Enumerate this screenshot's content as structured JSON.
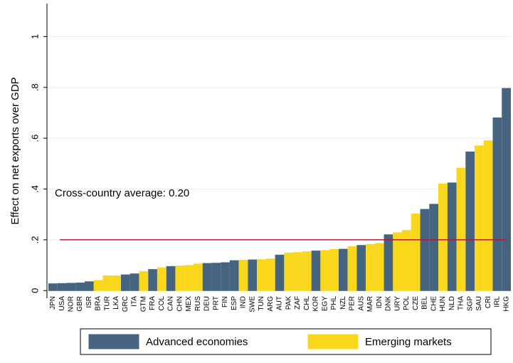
{
  "chart_data": {
    "type": "bar",
    "y_label": "Effect on net exports over GDP",
    "annotation": "Cross-country average: 0.20",
    "reference_line": {
      "value": 0.2,
      "color": "#c0143c"
    },
    "categories": [
      "JPN",
      "USA",
      "NOR",
      "GBR",
      "ISR",
      "BRA",
      "TUR",
      "LKA",
      "GRC",
      "ITA",
      "GTM",
      "FRA",
      "COL",
      "CAN",
      "CHN",
      "MEX",
      "RUS",
      "DEU",
      "PRT",
      "FIN",
      "ESP",
      "IND",
      "SWE",
      "TUN",
      "ARG",
      "AUT",
      "PAK",
      "ZAF",
      "CHL",
      "KOR",
      "EGY",
      "PHL",
      "NZL",
      "PER",
      "AUS",
      "MAR",
      "IDN",
      "DNK",
      "URY",
      "POL",
      "CZE",
      "BEL",
      "CHE",
      "HUN",
      "NLD",
      "THA",
      "SGP",
      "SAU",
      "CRI",
      "IRL",
      "HKG"
    ],
    "series": [
      {
        "name": "Advanced economies",
        "color": "#46647f",
        "values": [
          0.027,
          0.028,
          0.029,
          0.03,
          0.035,
          null,
          null,
          null,
          0.062,
          0.066,
          null,
          0.083,
          null,
          0.095,
          null,
          null,
          null,
          0.107,
          0.108,
          0.11,
          0.118,
          null,
          0.121,
          null,
          null,
          0.14,
          null,
          null,
          null,
          0.156,
          null,
          null,
          0.163,
          null,
          0.178,
          null,
          null,
          0.22,
          null,
          null,
          null,
          0.32,
          0.34,
          null,
          0.424,
          null,
          0.546,
          null,
          null,
          0.68,
          0.796
        ]
      },
      {
        "name": "Emerging markets",
        "color": "#f8d71c",
        "values": [
          null,
          null,
          null,
          null,
          null,
          0.04,
          0.058,
          0.058,
          null,
          null,
          0.075,
          null,
          0.09,
          null,
          0.097,
          0.099,
          0.105,
          null,
          null,
          null,
          null,
          0.12,
          null,
          0.122,
          0.125,
          null,
          0.148,
          0.15,
          0.153,
          null,
          0.158,
          0.162,
          null,
          0.173,
          null,
          0.182,
          0.185,
          null,
          0.228,
          0.237,
          0.302,
          null,
          null,
          0.42,
          null,
          0.482,
          null,
          0.57,
          0.59,
          null,
          null
        ]
      }
    ],
    "ylim": [
      -0.03,
      1.13
    ],
    "yticks": [
      0,
      {
        "value": 0.2,
        "label": ".2"
      },
      {
        "value": 0.4,
        "label": ".4"
      },
      {
        "value": 0.6,
        "label": ".6"
      },
      {
        "value": 0.8,
        "label": ".8"
      },
      1
    ],
    "grid": true
  }
}
